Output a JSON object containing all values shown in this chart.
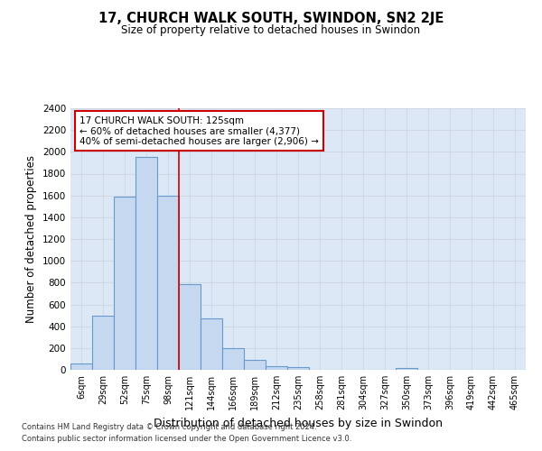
{
  "title1": "17, CHURCH WALK SOUTH, SWINDON, SN2 2JE",
  "title2": "Size of property relative to detached houses in Swindon",
  "xlabel": "Distribution of detached houses by size in Swindon",
  "ylabel": "Number of detached properties",
  "categories": [
    "6sqm",
    "29sqm",
    "52sqm",
    "75sqm",
    "98sqm",
    "121sqm",
    "144sqm",
    "166sqm",
    "189sqm",
    "212sqm",
    "235sqm",
    "258sqm",
    "281sqm",
    "304sqm",
    "327sqm",
    "350sqm",
    "373sqm",
    "396sqm",
    "419sqm",
    "442sqm",
    "465sqm"
  ],
  "bar_heights": [
    60,
    500,
    1590,
    1950,
    1600,
    790,
    470,
    200,
    90,
    35,
    25,
    0,
    0,
    0,
    0,
    20,
    0,
    0,
    0,
    0,
    0
  ],
  "bar_color": "#c5d8ef",
  "bar_edge_color": "#6699cc",
  "vline_x": 4.5,
  "vline_color": "#cc0000",
  "annotation_text": "17 CHURCH WALK SOUTH: 125sqm\n← 60% of detached houses are smaller (4,377)\n40% of semi-detached houses are larger (2,906) →",
  "annotation_box_color": "#ffffff",
  "annotation_box_edge_color": "#cc0000",
  "ylim": [
    0,
    2400
  ],
  "yticks": [
    0,
    200,
    400,
    600,
    800,
    1000,
    1200,
    1400,
    1600,
    1800,
    2000,
    2200,
    2400
  ],
  "grid_color": "#d0d8e4",
  "bg_color": "#dce8f5",
  "footer1": "Contains HM Land Registry data © Crown copyright and database right 2024.",
  "footer2": "Contains public sector information licensed under the Open Government Licence v3.0."
}
